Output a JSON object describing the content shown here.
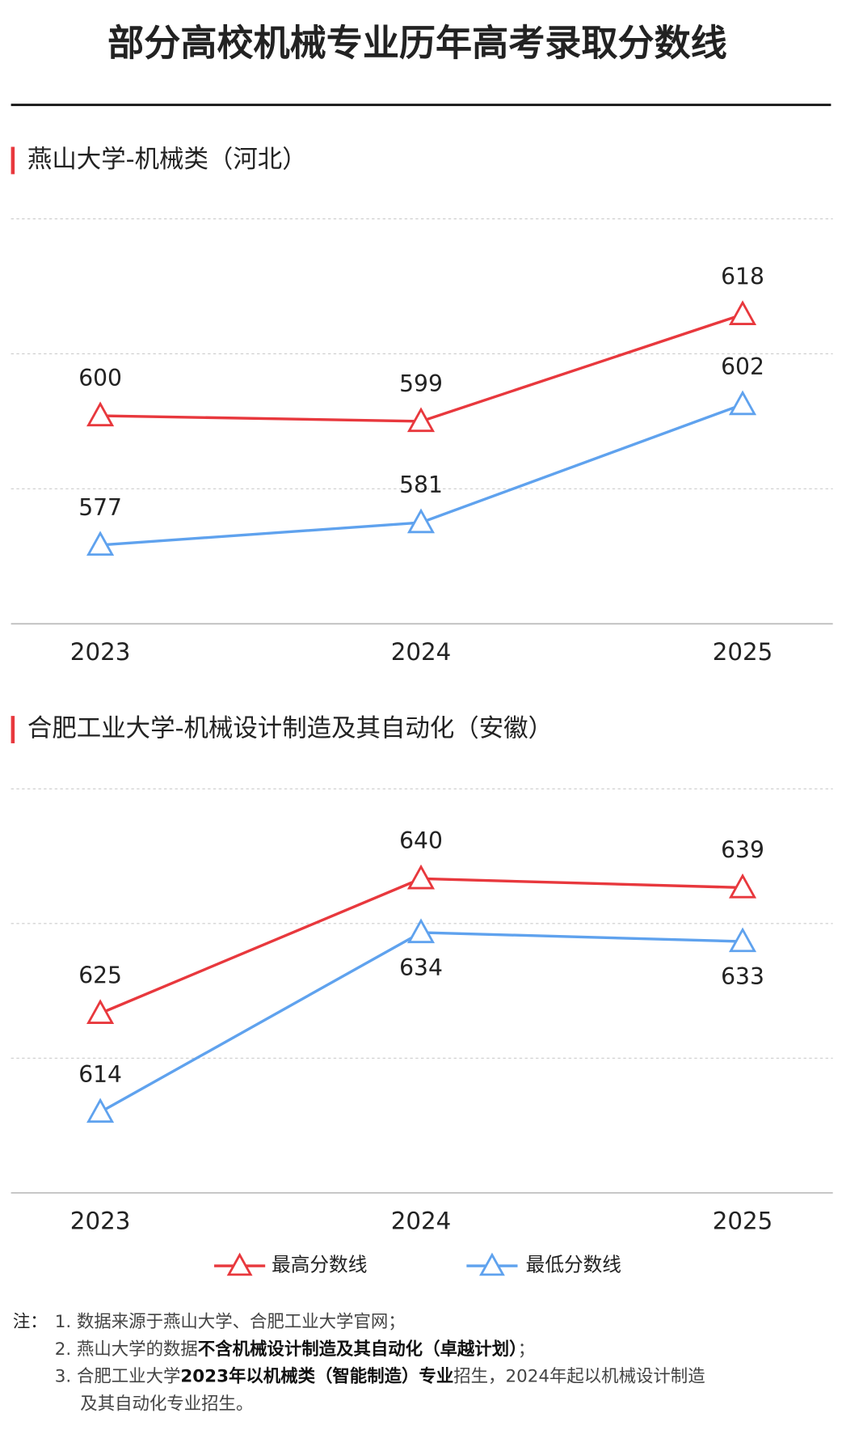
{
  "title": "部分高校机械专业历年高考录取分数线",
  "chart_data": [
    {
      "type": "line",
      "title": "燕山大学-机械类（河北）",
      "categories": [
        "2023",
        "2024",
        "2025"
      ],
      "series": [
        {
          "name": "最高分数线",
          "color": "#e8383d",
          "values": [
            600,
            599,
            618
          ]
        },
        {
          "name": "最低分数线",
          "color": "#5fa2ee",
          "values": [
            577,
            581,
            602
          ]
        }
      ],
      "ylim": [
        563,
        635
      ],
      "yticks": [
        563,
        587,
        611,
        635
      ],
      "grid": true
    },
    {
      "type": "line",
      "title": "合肥工业大学-机械设计制造及其自动化（安徽）",
      "categories": [
        "2023",
        "2024",
        "2025"
      ],
      "series": [
        {
          "color": "#e8383d",
          "values": [
            625,
            640,
            639
          ]
        },
        {
          "color": "#5fa2ee",
          "values": [
            614,
            634,
            633
          ]
        }
      ],
      "ylim": [
        605,
        650
      ],
      "yticks": [
        605,
        620,
        635,
        650
      ],
      "grid": true
    }
  ],
  "notes": {
    "label": "注：",
    "lines": [
      [
        {
          "text": "1. 数据来源于燕山大学、合肥工业大学官网；",
          "bold": false
        }
      ],
      [
        {
          "text": "2. 燕山大学的数据",
          "bold": false
        },
        {
          "text": "不含机械设计制造及其自动化（卓越计划）",
          "bold": true
        },
        {
          "text": "；",
          "bold": false
        }
      ],
      [
        {
          "text": "3. 合肥工业大学",
          "bold": false
        },
        {
          "text": "2023年以机械类（智能制造）专业",
          "bold": true
        },
        {
          "text": "招生，2024年起以机械设计制造",
          "bold": false
        }
      ],
      [
        {
          "text": "及其自动化专业招生。",
          "bold": false
        }
      ]
    ]
  }
}
